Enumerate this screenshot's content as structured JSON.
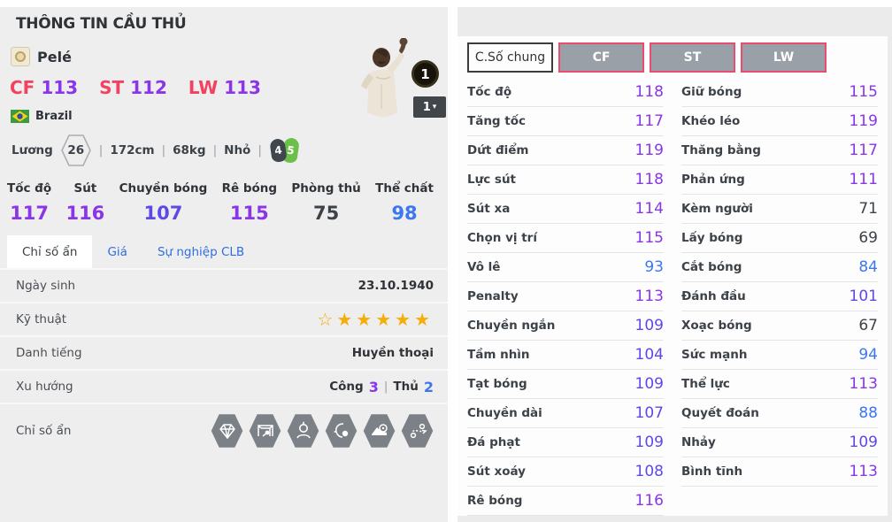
{
  "page": {
    "title": "THÔNG TIN CẦU THỦ"
  },
  "icons": {
    "chevron_down": "▾",
    "star_filled": "★",
    "star_outline": "☆",
    "pipe": "|"
  },
  "player": {
    "name": "Pelé",
    "positions": [
      {
        "pos": "CF",
        "rating": "113"
      },
      {
        "pos": "ST",
        "rating": "112"
      },
      {
        "pos": "LW",
        "rating": "113"
      }
    ],
    "nation": "Brazil",
    "salary_label": "Lương",
    "salary_value": "26",
    "height": "172cm",
    "weight": "68kg",
    "body_type": "Nhỏ",
    "left_foot": "4",
    "right_foot": "5",
    "upgrade_badge": "1",
    "upgrade_select": "1"
  },
  "main_stats": [
    {
      "label": "Tốc độ",
      "value": 117
    },
    {
      "label": "Sút",
      "value": 116
    },
    {
      "label": "Chuyền bóng",
      "value": 107
    },
    {
      "label": "Rê bóng",
      "value": 115
    },
    {
      "label": "Phòng thủ",
      "value": 75
    },
    {
      "label": "Thể chất",
      "value": 98
    }
  ],
  "info_tabs": [
    {
      "label": "Chỉ số ẩn",
      "active": true
    },
    {
      "label": "Giá",
      "active": false
    },
    {
      "label": "Sự nghiệp CLB",
      "active": false
    }
  ],
  "info_table": {
    "birth_label": "Ngày sinh",
    "birth_value": "23.10.1940",
    "skill_label": "Kỹ thuật",
    "stars_outline": 1,
    "stars_filled": 5,
    "fame_label": "Danh tiếng",
    "fame_value": "Huyền thoại",
    "trend_label": "Xu hướng",
    "trend_attack_label": "Công",
    "trend_attack_value": "3",
    "trend_defense_label": "Thủ",
    "trend_defense_value": "2",
    "hidden_label": "Chỉ số ẩn",
    "hidden_icons": [
      "gem-icon",
      "goal-ball-icon",
      "head-profile-icon",
      "face-ball-icon",
      "boot-target-icon",
      "cross-paths-icon"
    ]
  },
  "detail_tabs": [
    {
      "label": "C.Số chung",
      "active": true
    },
    {
      "label": "CF",
      "active": false
    },
    {
      "label": "ST",
      "active": false
    },
    {
      "label": "LW",
      "active": false
    }
  ],
  "detail_stats_left": [
    {
      "label": "Tốc độ",
      "value": 118
    },
    {
      "label": "Tăng tốc",
      "value": 117
    },
    {
      "label": "Dứt điểm",
      "value": 119
    },
    {
      "label": "Lực sút",
      "value": 118
    },
    {
      "label": "Sút xa",
      "value": 114
    },
    {
      "label": "Chọn vị trí",
      "value": 115
    },
    {
      "label": "Vô lê",
      "value": 93
    },
    {
      "label": "Penalty",
      "value": 113
    },
    {
      "label": "Chuyền ngắn",
      "value": 109
    },
    {
      "label": "Tầm nhìn",
      "value": 104
    },
    {
      "label": "Tạt bóng",
      "value": 109
    },
    {
      "label": "Chuyền dài",
      "value": 107
    },
    {
      "label": "Đá phạt",
      "value": 109
    },
    {
      "label": "Sút xoáy",
      "value": 108
    },
    {
      "label": "Rê bóng",
      "value": 116
    }
  ],
  "detail_stats_right": [
    {
      "label": "Giữ bóng",
      "value": 115
    },
    {
      "label": "Khéo léo",
      "value": 119
    },
    {
      "label": "Thăng bằng",
      "value": 117
    },
    {
      "label": "Phản ứng",
      "value": 111
    },
    {
      "label": "Kèm người",
      "value": 71
    },
    {
      "label": "Lấy bóng",
      "value": 69
    },
    {
      "label": "Cắt bóng",
      "value": 84
    },
    {
      "label": "Đánh đầu",
      "value": 101
    },
    {
      "label": "Xoạc bóng",
      "value": 67
    },
    {
      "label": "Sức mạnh",
      "value": 94
    },
    {
      "label": "Thể lực",
      "value": 113
    },
    {
      "label": "Quyết đoán",
      "value": 88
    },
    {
      "label": "Nhảy",
      "value": 109
    },
    {
      "label": "Bình tĩnh",
      "value": 113
    }
  ],
  "palette": {
    "value_purple": "#8a35e8",
    "value_violet": "#5c49e8",
    "value_blue": "#3d77ee",
    "value_dark": "#3c4248",
    "position_red": "#f4415f",
    "tab_link_blue": "#2f6fe0",
    "star_gold": "#f5ad08",
    "hex_icon_gray": "#7b8187",
    "pos_tab_border": "#e84d6f",
    "pos_tab_bg": "#9aa0a7",
    "left_bg": "#eeeeef",
    "right_bg": "#fdfdfe"
  }
}
